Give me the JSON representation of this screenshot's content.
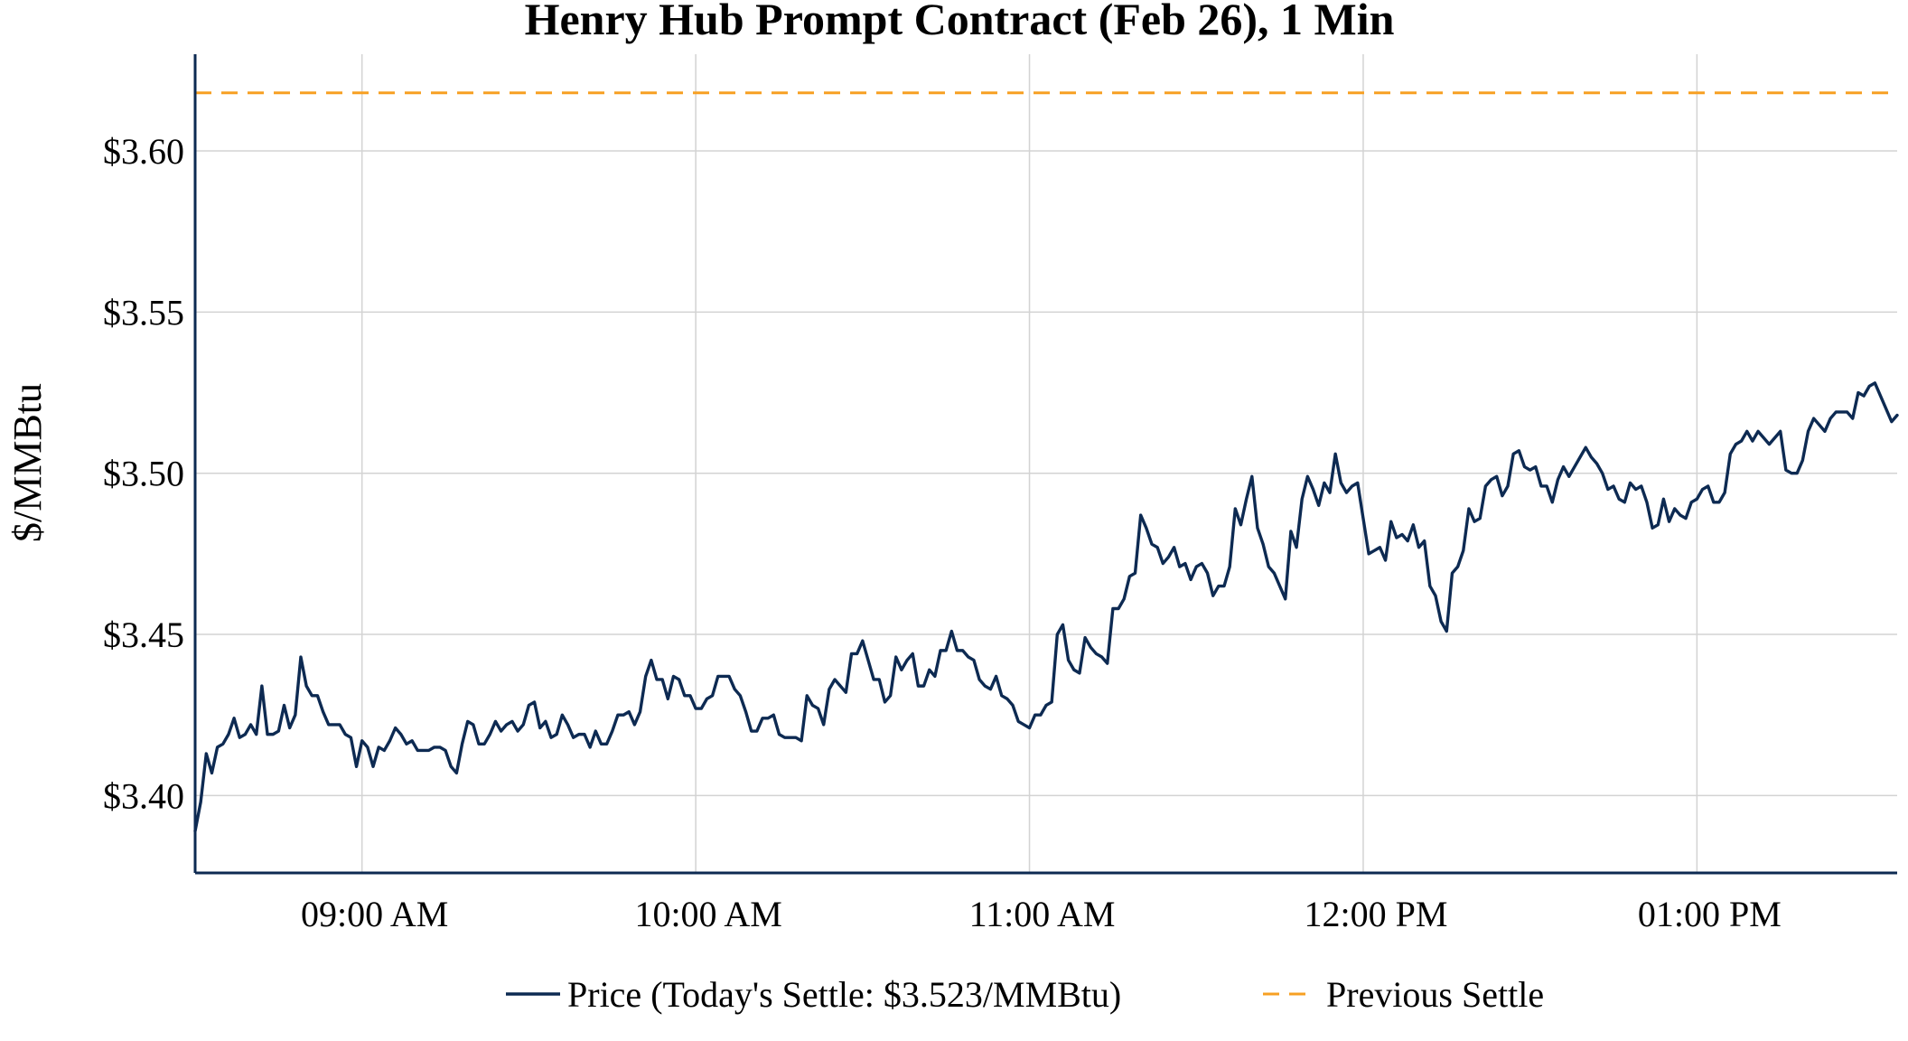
{
  "chart_data": {
    "type": "line",
    "title": "Henry Hub Prompt Contract (Feb 26), 1 Min",
    "xlabel": "",
    "ylabel": "$/MMBtu",
    "x_start": "08:30 AM",
    "x_end": "01:36 PM",
    "x_interval_minutes": 1,
    "x_ticks": [
      "09:00 AM",
      "10:00 AM",
      "11:00 AM",
      "12:00 PM",
      "01:00 PM"
    ],
    "y_ticks": [
      "$3.40",
      "$3.45",
      "$3.50",
      "$3.55",
      "$3.60"
    ],
    "ylim": [
      3.376,
      3.63
    ],
    "grid": true,
    "legend_position": "bottom",
    "series": [
      {
        "name": "Price (Today's Settle: $3.523/MMBtu)",
        "color": "#0d2a52",
        "style": "solid",
        "values": [
          3.389,
          3.398,
          3.413,
          3.407,
          3.415,
          3.416,
          3.419,
          3.424,
          3.418,
          3.419,
          3.422,
          3.419,
          3.434,
          3.419,
          3.419,
          3.42,
          3.428,
          3.421,
          3.425,
          3.443,
          3.434,
          3.431,
          3.431,
          3.426,
          3.422,
          3.422,
          3.422,
          3.419,
          3.418,
          3.409,
          3.417,
          3.415,
          3.409,
          3.415,
          3.414,
          3.417,
          3.421,
          3.419,
          3.416,
          3.417,
          3.414,
          3.414,
          3.414,
          3.415,
          3.415,
          3.414,
          3.409,
          3.407,
          3.416,
          3.423,
          3.422,
          3.416,
          3.416,
          3.419,
          3.423,
          3.42,
          3.422,
          3.423,
          3.42,
          3.422,
          3.428,
          3.429,
          3.421,
          3.423,
          3.418,
          3.419,
          3.425,
          3.422,
          3.418,
          3.419,
          3.419,
          3.415,
          3.42,
          3.416,
          3.416,
          3.42,
          3.425,
          3.425,
          3.426,
          3.422,
          3.426,
          3.437,
          3.442,
          3.436,
          3.436,
          3.43,
          3.437,
          3.436,
          3.431,
          3.431,
          3.427,
          3.427,
          3.43,
          3.431,
          3.437,
          3.437,
          3.437,
          3.433,
          3.431,
          3.426,
          3.42,
          3.42,
          3.424,
          3.424,
          3.425,
          3.419,
          3.418,
          3.418,
          3.418,
          3.417,
          3.431,
          3.428,
          3.427,
          3.422,
          3.433,
          3.436,
          3.434,
          3.432,
          3.444,
          3.444,
          3.448,
          3.442,
          3.436,
          3.436,
          3.429,
          3.431,
          3.443,
          3.439,
          3.442,
          3.444,
          3.434,
          3.434,
          3.439,
          3.437,
          3.445,
          3.445,
          3.451,
          3.445,
          3.445,
          3.443,
          3.442,
          3.436,
          3.434,
          3.433,
          3.437,
          3.431,
          3.43,
          3.428,
          3.423,
          3.422,
          3.421,
          3.425,
          3.425,
          3.428,
          3.429,
          3.45,
          3.453,
          3.442,
          3.439,
          3.438,
          3.449,
          3.446,
          3.444,
          3.443,
          3.441,
          3.458,
          3.458,
          3.461,
          3.468,
          3.469,
          3.487,
          3.483,
          3.478,
          3.477,
          3.472,
          3.474,
          3.477,
          3.471,
          3.472,
          3.467,
          3.471,
          3.472,
          3.469,
          3.462,
          3.465,
          3.465,
          3.471,
          3.489,
          3.484,
          3.492,
          3.499,
          3.483,
          3.478,
          3.471,
          3.469,
          3.465,
          3.461,
          3.482,
          3.477,
          3.492,
          3.499,
          3.495,
          3.49,
          3.497,
          3.494,
          3.506,
          3.497,
          3.494,
          3.496,
          3.497,
          3.486,
          3.475,
          3.476,
          3.477,
          3.473,
          3.485,
          3.48,
          3.481,
          3.479,
          3.484,
          3.477,
          3.479,
          3.465,
          3.462,
          3.454,
          3.451,
          3.469,
          3.471,
          3.476,
          3.489,
          3.485,
          3.486,
          3.496,
          3.498,
          3.499,
          3.493,
          3.496,
          3.506,
          3.507,
          3.502,
          3.501,
          3.502,
          3.496,
          3.496,
          3.491,
          3.498,
          3.502,
          3.499,
          3.502,
          3.505,
          3.508,
          3.505,
          3.503,
          3.5,
          3.495,
          3.496,
          3.492,
          3.491,
          3.497,
          3.495,
          3.496,
          3.491,
          3.483,
          3.484,
          3.492,
          3.485,
          3.489,
          3.487,
          3.486,
          3.491,
          3.492,
          3.495,
          3.496,
          3.491,
          3.491,
          3.494,
          3.506,
          3.509,
          3.51,
          3.513,
          3.51,
          3.513,
          3.511,
          3.509,
          3.511,
          3.513,
          3.501,
          3.5,
          3.5,
          3.504,
          3.513,
          3.517,
          3.515,
          3.513,
          3.517,
          3.519,
          3.519,
          3.519,
          3.517,
          3.525,
          3.524,
          3.527,
          3.528,
          3.524,
          3.52,
          3.516,
          3.518
        ]
      },
      {
        "name": "Previous Settle",
        "color": "#f7a023",
        "style": "dashed",
        "constant": 3.618
      }
    ]
  }
}
